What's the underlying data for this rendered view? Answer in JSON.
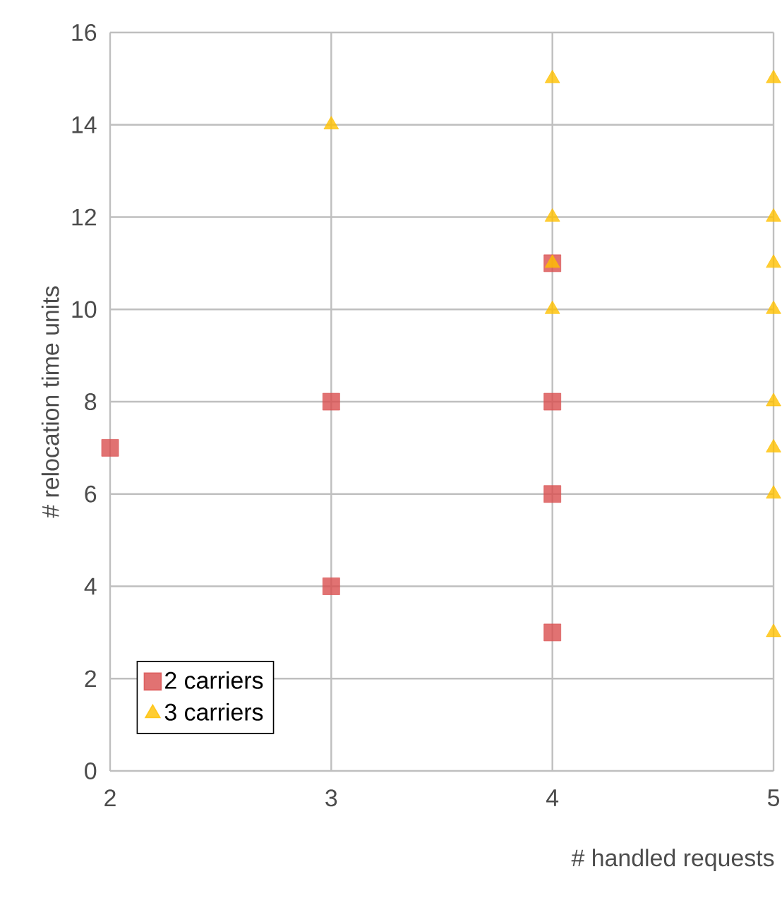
{
  "chart_data": {
    "type": "scatter",
    "xlabel": "# handled requests",
    "ylabel": "# relocation time units",
    "xlim": [
      2,
      5
    ],
    "xticks": [
      2,
      3,
      4,
      5
    ],
    "ylim": [
      0,
      16
    ],
    "yticks": [
      0,
      2,
      4,
      6,
      8,
      10,
      12,
      14,
      16
    ],
    "grid": true,
    "legend": "bottom left",
    "series": [
      {
        "name": "2 carriers",
        "color": "#d94f4f",
        "marker": "square",
        "x": [
          2,
          3,
          3,
          4,
          4,
          4,
          4
        ],
        "values": [
          7,
          8,
          4,
          11,
          8,
          6,
          3
        ]
      },
      {
        "name": "3 carriers",
        "color": "#ffc000",
        "marker": "triangle",
        "x": [
          3,
          4,
          4,
          4,
          4,
          5,
          5,
          5,
          5,
          5,
          5,
          5,
          5
        ],
        "values": [
          14,
          15,
          12,
          11,
          10,
          15,
          12,
          11,
          10,
          8,
          7,
          6,
          3
        ]
      }
    ]
  }
}
